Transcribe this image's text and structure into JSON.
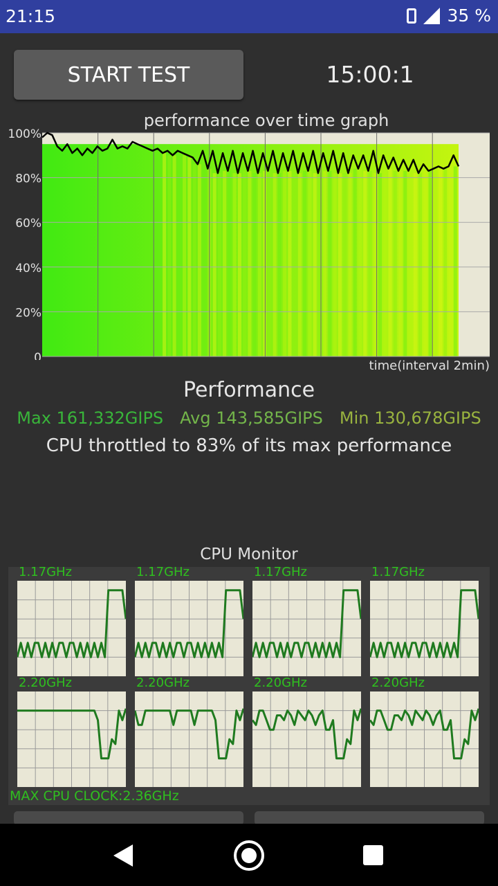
{
  "status_bar": {
    "time": "21:15",
    "battery": "35 %",
    "icons": [
      "phone-icon",
      "signal-icon"
    ]
  },
  "controls": {
    "start_label": "START TEST",
    "timer": "15:00:1"
  },
  "graph": {
    "title": "performance over time graph",
    "time_label": "time(interval 2min)",
    "y_ticks": [
      "0",
      "20%",
      "40%",
      "60%",
      "80%",
      "100%"
    ],
    "y_min": 0,
    "y_max": 100,
    "background": "#e9e7d6",
    "grid_color": "#a9a9a9",
    "fill_start": "#41ea12",
    "fill_end": "#c4f50f"
  },
  "performance": {
    "heading": "Performance",
    "max": "Max 161,332GIPS",
    "avg": "Avg 143,585GIPS",
    "min": "Min 130,678GIPS",
    "max_color": "#39b53a",
    "avg_color": "#73b54a",
    "min_color": "#99b33f",
    "throttle_text": "CPU throttled to 83% of its max performance"
  },
  "chart_data": {
    "type": "line",
    "title": "performance over time graph",
    "xlabel": "time(interval 2min)",
    "ylabel": "",
    "ylim": [
      0,
      100
    ],
    "series": [
      {
        "values": [
          98,
          100,
          99,
          94,
          92,
          95,
          91,
          93,
          90,
          93,
          91,
          94,
          92,
          93,
          97,
          93,
          94,
          93,
          96,
          95,
          94,
          93,
          92,
          93,
          91,
          92,
          90,
          92,
          91,
          90,
          89,
          86,
          92,
          84,
          92,
          82,
          91,
          83,
          92,
          82,
          91,
          83,
          92,
          82,
          91,
          83,
          92,
          82,
          91,
          83,
          92,
          82,
          91,
          83,
          92,
          82,
          91,
          83,
          92,
          82,
          91,
          82,
          90,
          84,
          90,
          83,
          92,
          82,
          90,
          84,
          89,
          83,
          88,
          83,
          88,
          82,
          86,
          83,
          84,
          85,
          84,
          85,
          90,
          85
        ]
      }
    ]
  },
  "cpu_monitor": {
    "title": "CPU Monitor",
    "max_clock": "MAX CPU CLOCK:2.36GHz",
    "line_color": "#1f7a1f",
    "cores": [
      {
        "label": "1.17GHz",
        "values": [
          20,
          35,
          20,
          35,
          20,
          35,
          35,
          20,
          35,
          20,
          35,
          20,
          35,
          35,
          20,
          35,
          35,
          20,
          35,
          20,
          35,
          20,
          35,
          20,
          35,
          20,
          90,
          90,
          90,
          90,
          90,
          60
        ]
      },
      {
        "label": "1.17GHz",
        "values": [
          20,
          35,
          20,
          35,
          20,
          35,
          35,
          20,
          35,
          20,
          35,
          20,
          35,
          35,
          20,
          35,
          35,
          20,
          35,
          20,
          35,
          20,
          35,
          20,
          35,
          20,
          90,
          90,
          90,
          90,
          90,
          60
        ]
      },
      {
        "label": "1.17GHz",
        "values": [
          20,
          35,
          20,
          35,
          20,
          35,
          35,
          20,
          35,
          20,
          35,
          20,
          35,
          35,
          20,
          35,
          35,
          20,
          35,
          20,
          35,
          20,
          35,
          20,
          35,
          20,
          90,
          90,
          90,
          90,
          90,
          60
        ]
      },
      {
        "label": "1.17GHz",
        "values": [
          20,
          35,
          20,
          35,
          20,
          35,
          35,
          20,
          35,
          20,
          35,
          20,
          35,
          35,
          20,
          35,
          35,
          20,
          35,
          20,
          35,
          20,
          35,
          20,
          35,
          20,
          90,
          90,
          90,
          90,
          90,
          60
        ]
      },
      {
        "label": "2.20GHz",
        "values": [
          80,
          80,
          80,
          80,
          80,
          80,
          80,
          80,
          80,
          80,
          80,
          80,
          80,
          80,
          80,
          80,
          80,
          80,
          80,
          80,
          80,
          80,
          80,
          70,
          30,
          30,
          30,
          50,
          45,
          80,
          70,
          82
        ]
      },
      {
        "label": "2.20GHz",
        "values": [
          80,
          65,
          65,
          80,
          80,
          80,
          80,
          80,
          80,
          80,
          80,
          65,
          80,
          80,
          80,
          80,
          80,
          65,
          80,
          80,
          80,
          80,
          80,
          70,
          30,
          30,
          30,
          50,
          45,
          80,
          70,
          82
        ]
      },
      {
        "label": "2.20GHz",
        "values": [
          70,
          65,
          80,
          80,
          70,
          60,
          60,
          75,
          75,
          70,
          80,
          75,
          65,
          80,
          75,
          70,
          80,
          75,
          65,
          75,
          80,
          60,
          60,
          70,
          30,
          30,
          30,
          50,
          45,
          80,
          70,
          82
        ]
      },
      {
        "label": "2.20GHz",
        "values": [
          70,
          65,
          80,
          80,
          70,
          60,
          60,
          75,
          75,
          70,
          80,
          75,
          65,
          80,
          75,
          70,
          80,
          75,
          65,
          75,
          80,
          60,
          60,
          70,
          30,
          30,
          30,
          50,
          45,
          80,
          70,
          82
        ]
      }
    ]
  }
}
